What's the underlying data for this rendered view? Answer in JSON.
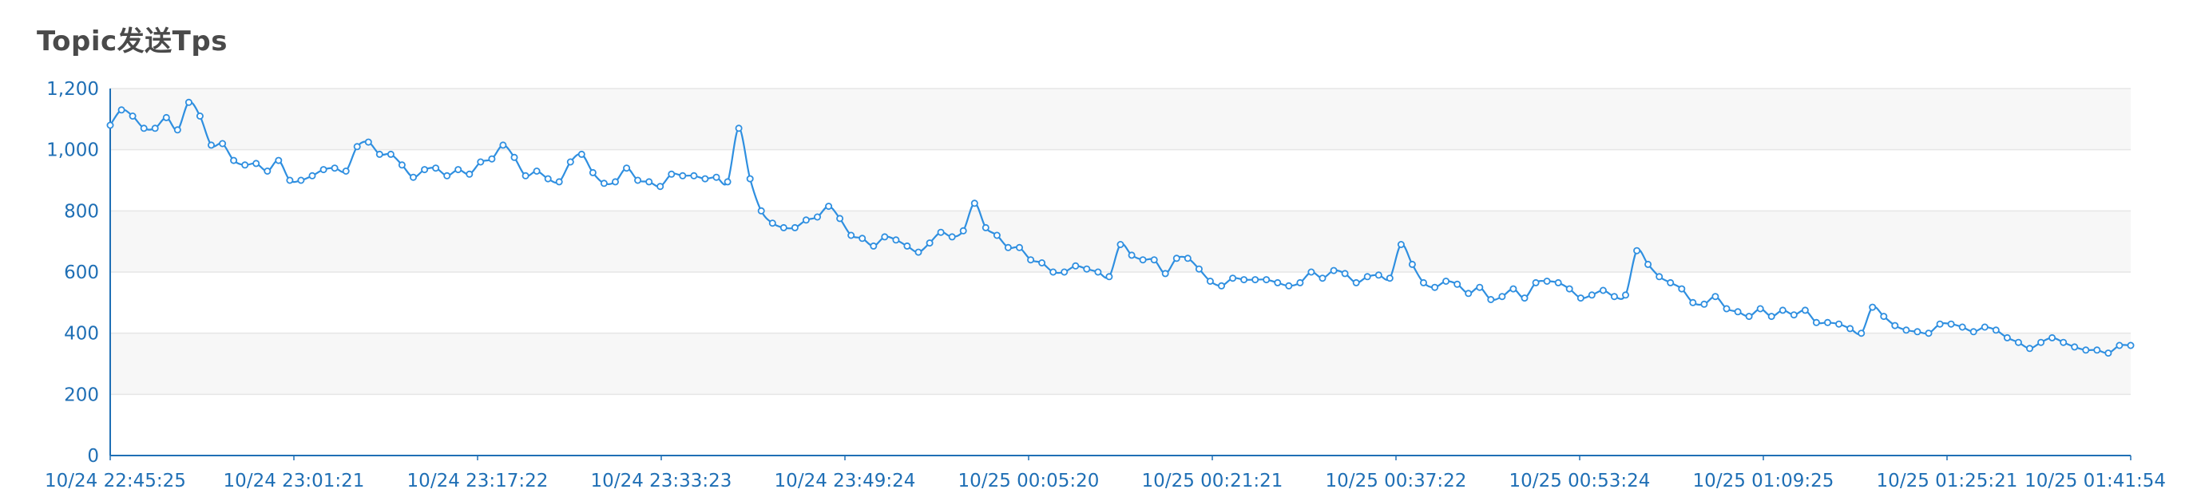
{
  "chart_data": {
    "type": "line",
    "title": "Topic发送Tps",
    "xlabel": "",
    "ylabel": "",
    "ylim": [
      0,
      1200
    ],
    "yticks": [
      0,
      200,
      400,
      600,
      800,
      1000,
      1200
    ],
    "ytick_labels": [
      "0",
      "200",
      "400",
      "600",
      "800",
      "1,000",
      "1,200"
    ],
    "xtick_labels": [
      "10/24 22:45:25",
      "10/24 23:01:21",
      "10/24 23:17:22",
      "10/24 23:33:23",
      "10/24 23:49:24",
      "10/25 00:05:20",
      "10/25 00:21:21",
      "10/25 00:37:22",
      "10/25 00:53:24",
      "10/25 01:09:25",
      "10/25 01:25:21",
      "10/25 01:41:54"
    ],
    "grid": true,
    "colors": {
      "line": "#2f8fe0",
      "band": "#f7f7f7",
      "grid": "#e6e6e6",
      "axis": "#1f6fb5",
      "title": "#4a4a4a"
    },
    "series": [
      {
        "values": [
          1080,
          1130,
          1110,
          1070,
          1070,
          1105,
          1065,
          1155,
          1110,
          1015,
          1020,
          965,
          950,
          955,
          930,
          965,
          900,
          900,
          915,
          935,
          940,
          930,
          1010,
          1025,
          985,
          985,
          950,
          910,
          935,
          940,
          915,
          935,
          920,
          960,
          970,
          1015,
          975,
          915,
          930,
          905,
          895,
          960,
          985,
          925,
          890,
          895,
          940,
          900,
          895,
          880,
          920,
          915,
          915,
          905,
          910,
          895,
          1070,
          905,
          800,
          760,
          745,
          745,
          770,
          780,
          815,
          775,
          720,
          710,
          685,
          715,
          705,
          685,
          665,
          695,
          730,
          715,
          735,
          825,
          745,
          720,
          680,
          680,
          640,
          630,
          600,
          600,
          620,
          610,
          600,
          585,
          690,
          655,
          640,
          640,
          595,
          645,
          645,
          610,
          570,
          555,
          580,
          575,
          575,
          575,
          565,
          555,
          565,
          600,
          580,
          605,
          595,
          565,
          585,
          590,
          580,
          690,
          625,
          565,
          550,
          570,
          560,
          530,
          550,
          510,
          520,
          545,
          515,
          565,
          570,
          565,
          545,
          515,
          525,
          540,
          520,
          525,
          670,
          625,
          585,
          565,
          545,
          500,
          495,
          520,
          480,
          470,
          455,
          480,
          455,
          475,
          460,
          475,
          435,
          435,
          430,
          415,
          400,
          485,
          455,
          425,
          410,
          405,
          400,
          430,
          430,
          420,
          405,
          420,
          410,
          385,
          370,
          350,
          370,
          385,
          370,
          355,
          345,
          345,
          335,
          360,
          360
        ]
      }
    ]
  }
}
